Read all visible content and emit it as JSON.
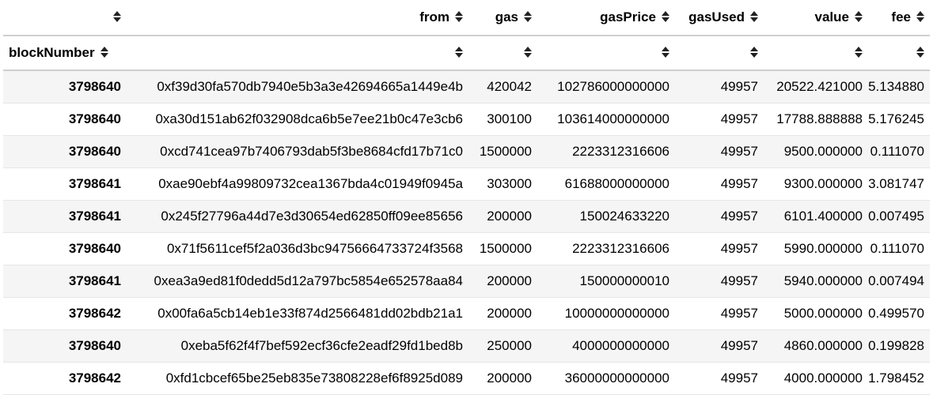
{
  "columns": [
    {
      "key": "from",
      "label": "from"
    },
    {
      "key": "gas",
      "label": "gas"
    },
    {
      "key": "gasPrice",
      "label": "gasPrice"
    },
    {
      "key": "gasUsed",
      "label": "gasUsed"
    },
    {
      "key": "value",
      "label": "value"
    },
    {
      "key": "fee",
      "label": "fee"
    }
  ],
  "index_name": "blockNumber",
  "rows": [
    {
      "blockNumber": "3798640",
      "from": "0xf39d30fa570db7940e5b3a3e42694665a1449e4b",
      "gas": "420042",
      "gasPrice": "102786000000000",
      "gasUsed": "49957",
      "value": "20522.421000",
      "fee": "5.134880"
    },
    {
      "blockNumber": "3798640",
      "from": "0xa30d151ab62f032908dca6b5e7ee21b0c47e3cb6",
      "gas": "300100",
      "gasPrice": "103614000000000",
      "gasUsed": "49957",
      "value": "17788.888888",
      "fee": "5.176245"
    },
    {
      "blockNumber": "3798640",
      "from": "0xcd741cea97b7406793dab5f3be8684cfd17b71c0",
      "gas": "1500000",
      "gasPrice": "2223312316606",
      "gasUsed": "49957",
      "value": "9500.000000",
      "fee": "0.111070"
    },
    {
      "blockNumber": "3798641",
      "from": "0xae90ebf4a99809732cea1367bda4c01949f0945a",
      "gas": "303000",
      "gasPrice": "61688000000000",
      "gasUsed": "49957",
      "value": "9300.000000",
      "fee": "3.081747"
    },
    {
      "blockNumber": "3798641",
      "from": "0x245f27796a44d7e3d30654ed62850ff09ee85656",
      "gas": "200000",
      "gasPrice": "150024633220",
      "gasUsed": "49957",
      "value": "6101.400000",
      "fee": "0.007495"
    },
    {
      "blockNumber": "3798640",
      "from": "0x71f5611cef5f2a036d3bc94756664733724f3568",
      "gas": "1500000",
      "gasPrice": "2223312316606",
      "gasUsed": "49957",
      "value": "5990.000000",
      "fee": "0.111070"
    },
    {
      "blockNumber": "3798641",
      "from": "0xea3a9ed81f0dedd5d12a797bc5854e652578aa84",
      "gas": "200000",
      "gasPrice": "150000000010",
      "gasUsed": "49957",
      "value": "5940.000000",
      "fee": "0.007494"
    },
    {
      "blockNumber": "3798642",
      "from": "0x00fa6a5cb14eb1e33f874d2566481dd02bdb21a1",
      "gas": "200000",
      "gasPrice": "10000000000000",
      "gasUsed": "49957",
      "value": "5000.000000",
      "fee": "0.499570"
    },
    {
      "blockNumber": "3798640",
      "from": "0xeba5f62f4f7bef592ecf36cfe2eadf29fd1bed8b",
      "gas": "250000",
      "gasPrice": "4000000000000",
      "gasUsed": "49957",
      "value": "4860.000000",
      "fee": "0.199828"
    },
    {
      "blockNumber": "3798642",
      "from": "0xfd1cbcef65be25eb835e73808228ef6f8925d089",
      "gas": "200000",
      "gasPrice": "36000000000000",
      "gasUsed": "49957",
      "value": "4000.000000",
      "fee": "1.798452"
    }
  ],
  "icons": {
    "sort": "sort-both-icon"
  }
}
